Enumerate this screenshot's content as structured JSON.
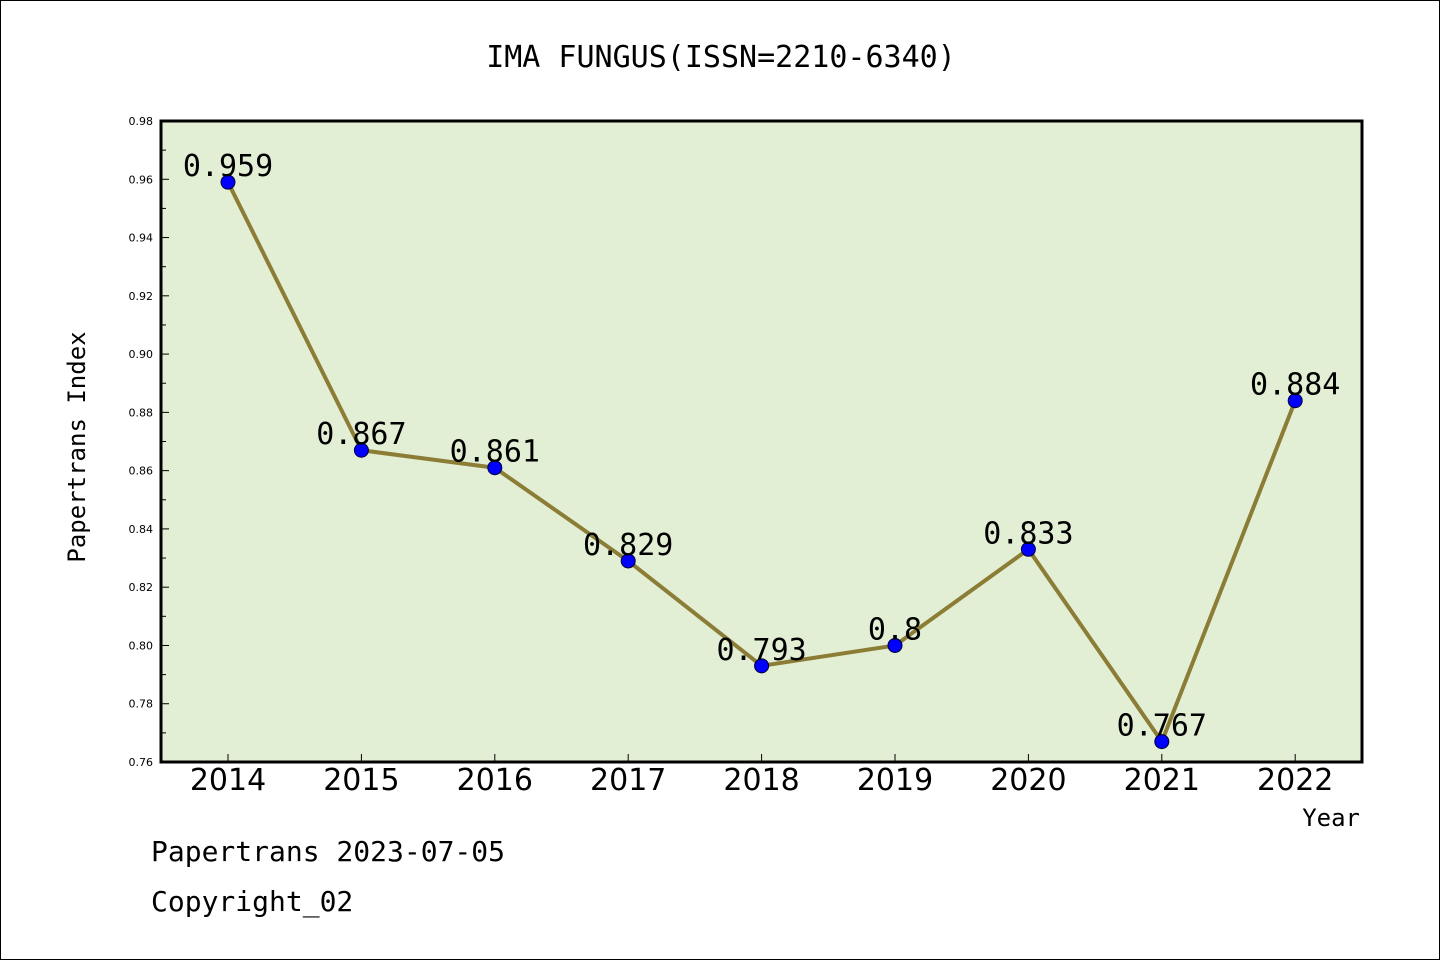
{
  "footer": {
    "line1": "Papertrans 2023-07-05",
    "line2": "Copyright_02"
  },
  "chart_data": {
    "type": "line",
    "title": "IMA FUNGUS(ISSN=2210-6340)",
    "xlabel": "Year",
    "ylabel": "Papertrans Index",
    "categories": [
      "2014",
      "2015",
      "2016",
      "2017",
      "2018",
      "2019",
      "2020",
      "2021",
      "2022"
    ],
    "values": [
      0.959,
      0.867,
      0.861,
      0.829,
      0.793,
      0.8,
      0.833,
      0.767,
      0.884
    ],
    "data_labels": [
      "0.959",
      "0.867",
      "0.861",
      "0.829",
      "0.793",
      "0.8",
      "0.833",
      "0.767",
      "0.884"
    ],
    "ylim": [
      0.76,
      0.98
    ],
    "yticks": [
      "0.76",
      "0.78",
      "0.80",
      "0.82",
      "0.84",
      "0.86",
      "0.88",
      "0.90",
      "0.92",
      "0.94",
      "0.96",
      "0.98"
    ],
    "grid": false,
    "colors": {
      "plot_background": "#e2efd5",
      "line": "#8b7d35",
      "marker": "#0000ff"
    }
  }
}
